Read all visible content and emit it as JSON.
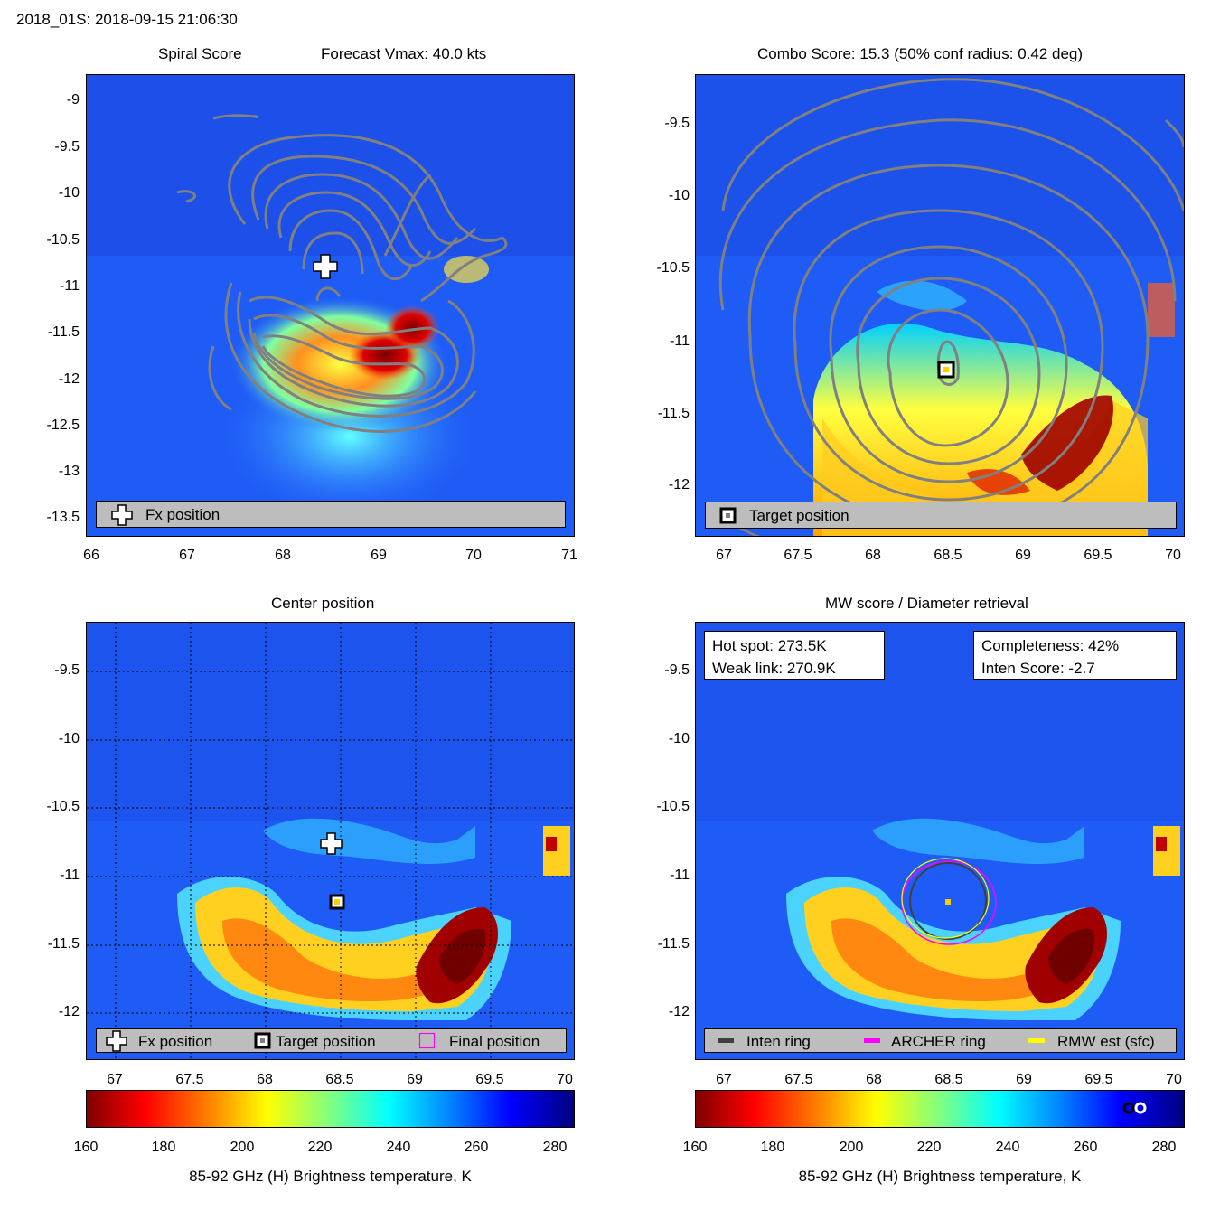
{
  "figure_title": "2018_01S: 2018-09-15 21:06:30",
  "colors": {
    "contour": "#808080",
    "legend_bg": "#bdbdbd",
    "inten_ring": "#404040",
    "archer_ring": "#ff00ff",
    "rmw_ring": "#ffff00"
  },
  "panels": {
    "spiral": {
      "title_left": "Spiral Score",
      "title_right": "Forecast Vmax: 40.0 kts",
      "legend": {
        "fx": "Fx position"
      },
      "icons": [
        "plus-icon"
      ]
    },
    "combo": {
      "title": "Combo Score: 15.3  (50% conf radius: 0.42 deg)",
      "legend": {
        "target": "Target position"
      },
      "icons": [
        "square-marker-icon"
      ]
    },
    "center": {
      "title": "Center position",
      "legend": {
        "fx": "Fx position",
        "target": "Target position",
        "final": "Final position"
      },
      "icons": [
        "plus-icon",
        "square-marker-icon",
        "magenta-square-icon"
      ]
    },
    "mw": {
      "title": "MW score / Diameter retrieval",
      "info_left": {
        "hot_spot": "Hot spot: 273.5K",
        "weak_link": "Weak link: 270.9K"
      },
      "info_right": {
        "completeness": "Completeness: 42%",
        "inten_score": "Inten Score: -2.7"
      },
      "legend": {
        "inten": "Inten ring",
        "archer": "ARCHER ring",
        "rmw": "RMW est (sfc)"
      }
    }
  },
  "colorbar": {
    "ticks": [
      "160",
      "180",
      "200",
      "220",
      "240",
      "260",
      "280"
    ],
    "label": "85-92 GHz (H) Brightness temperature, K",
    "range": [
      160,
      285
    ]
  },
  "chart_data": [
    {
      "type": "heatmap",
      "name": "Spiral Score",
      "x_ticks": [
        "66",
        "67",
        "68",
        "69",
        "70",
        "71"
      ],
      "y_ticks": [
        "-9",
        "-9.5",
        "-10",
        "-10.5",
        "-11",
        "-11.5",
        "-12",
        "-12.5",
        "-13",
        "-13.5"
      ],
      "xlim": [
        66,
        71
      ],
      "ylim": [
        -13.75,
        -8.75
      ],
      "fx_position": {
        "lon": 68.45,
        "lat": -10.75
      },
      "forecast_vmax_kts": 40.0
    },
    {
      "type": "heatmap",
      "name": "Combo Score",
      "x_ticks": [
        "67",
        "67.5",
        "68",
        "68.5",
        "69",
        "69.5",
        "70"
      ],
      "y_ticks": [
        "-9.5",
        "-10",
        "-10.5",
        "-11",
        "-11.5",
        "-12"
      ],
      "xlim": [
        66.8,
        70.05
      ],
      "ylim": [
        -12.35,
        -9.1
      ],
      "target_position": {
        "lon": 68.5,
        "lat": -11.2
      },
      "combo_score": 15.3,
      "conf_radius_deg": 0.42
    },
    {
      "type": "heatmap",
      "name": "Center position",
      "x_ticks": [
        "67",
        "67.5",
        "68",
        "68.5",
        "69",
        "69.5",
        "70"
      ],
      "y_ticks": [
        "-9.5",
        "-10",
        "-10.5",
        "-11",
        "-11.5",
        "-12"
      ],
      "xlim": [
        66.8,
        70.05
      ],
      "ylim": [
        -12.35,
        -9.15
      ],
      "fx_position": {
        "lon": 68.45,
        "lat": -10.75
      },
      "target_position": {
        "lon": 68.5,
        "lat": -11.2
      }
    },
    {
      "type": "heatmap",
      "name": "MW score / Diameter retrieval",
      "x_ticks": [
        "67",
        "67.5",
        "68",
        "68.5",
        "69",
        "69.5",
        "70"
      ],
      "y_ticks": [
        "-9.5",
        "-10",
        "-10.5",
        "-11",
        "-11.5",
        "-12"
      ],
      "xlim": [
        66.8,
        70.05
      ],
      "ylim": [
        -12.35,
        -9.15
      ],
      "hot_spot_K": 273.5,
      "weak_link_K": 270.9,
      "completeness_pct": 42,
      "inten_score": -2.7
    }
  ]
}
